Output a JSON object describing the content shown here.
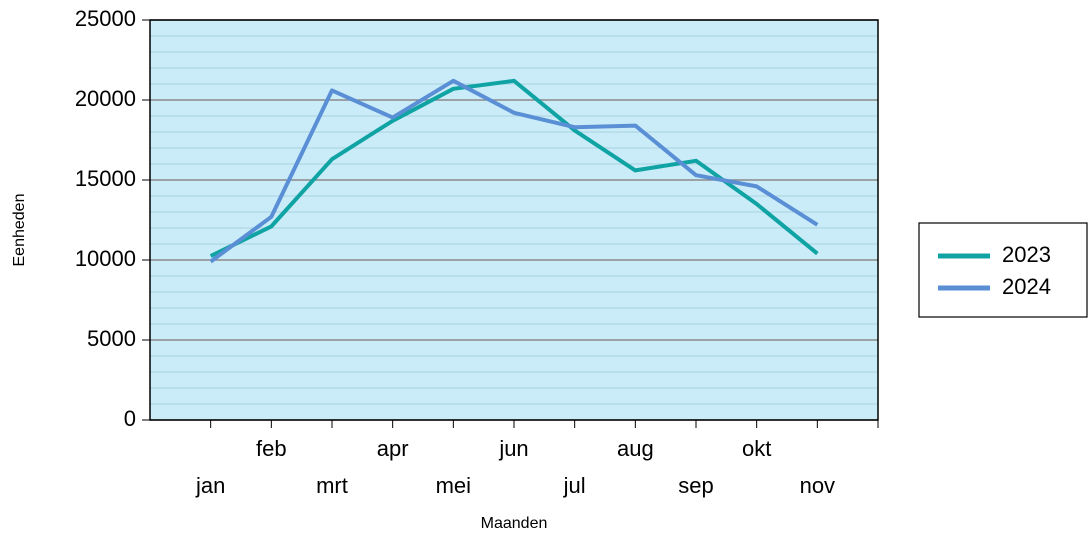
{
  "chart_data": {
    "type": "line",
    "x_label": "Maanden",
    "y_label": "Eenheden",
    "categories": [
      "jan",
      "feb",
      "mrt",
      "apr",
      "mei",
      "jun",
      "jul",
      "aug",
      "sep",
      "okt",
      "nov"
    ],
    "series": [
      {
        "name": "2023",
        "color": "#0fa3a3",
        "values": [
          10250,
          12100,
          16300,
          18700,
          20700,
          21200,
          18100,
          15600,
          16200,
          13500,
          10400
        ]
      },
      {
        "name": "2024",
        "color": "#5a8fd6",
        "values": [
          9900,
          12700,
          20600,
          18900,
          21200,
          19200,
          18300,
          18400,
          15300,
          14600,
          12200
        ]
      }
    ],
    "ylim": [
      0,
      25000
    ],
    "yticks": [
      0,
      5000,
      10000,
      15000,
      20000,
      25000
    ],
    "grid": true,
    "minor_grid_step": 1000,
    "legend": "right",
    "plot_background": "#c9ecf8"
  }
}
